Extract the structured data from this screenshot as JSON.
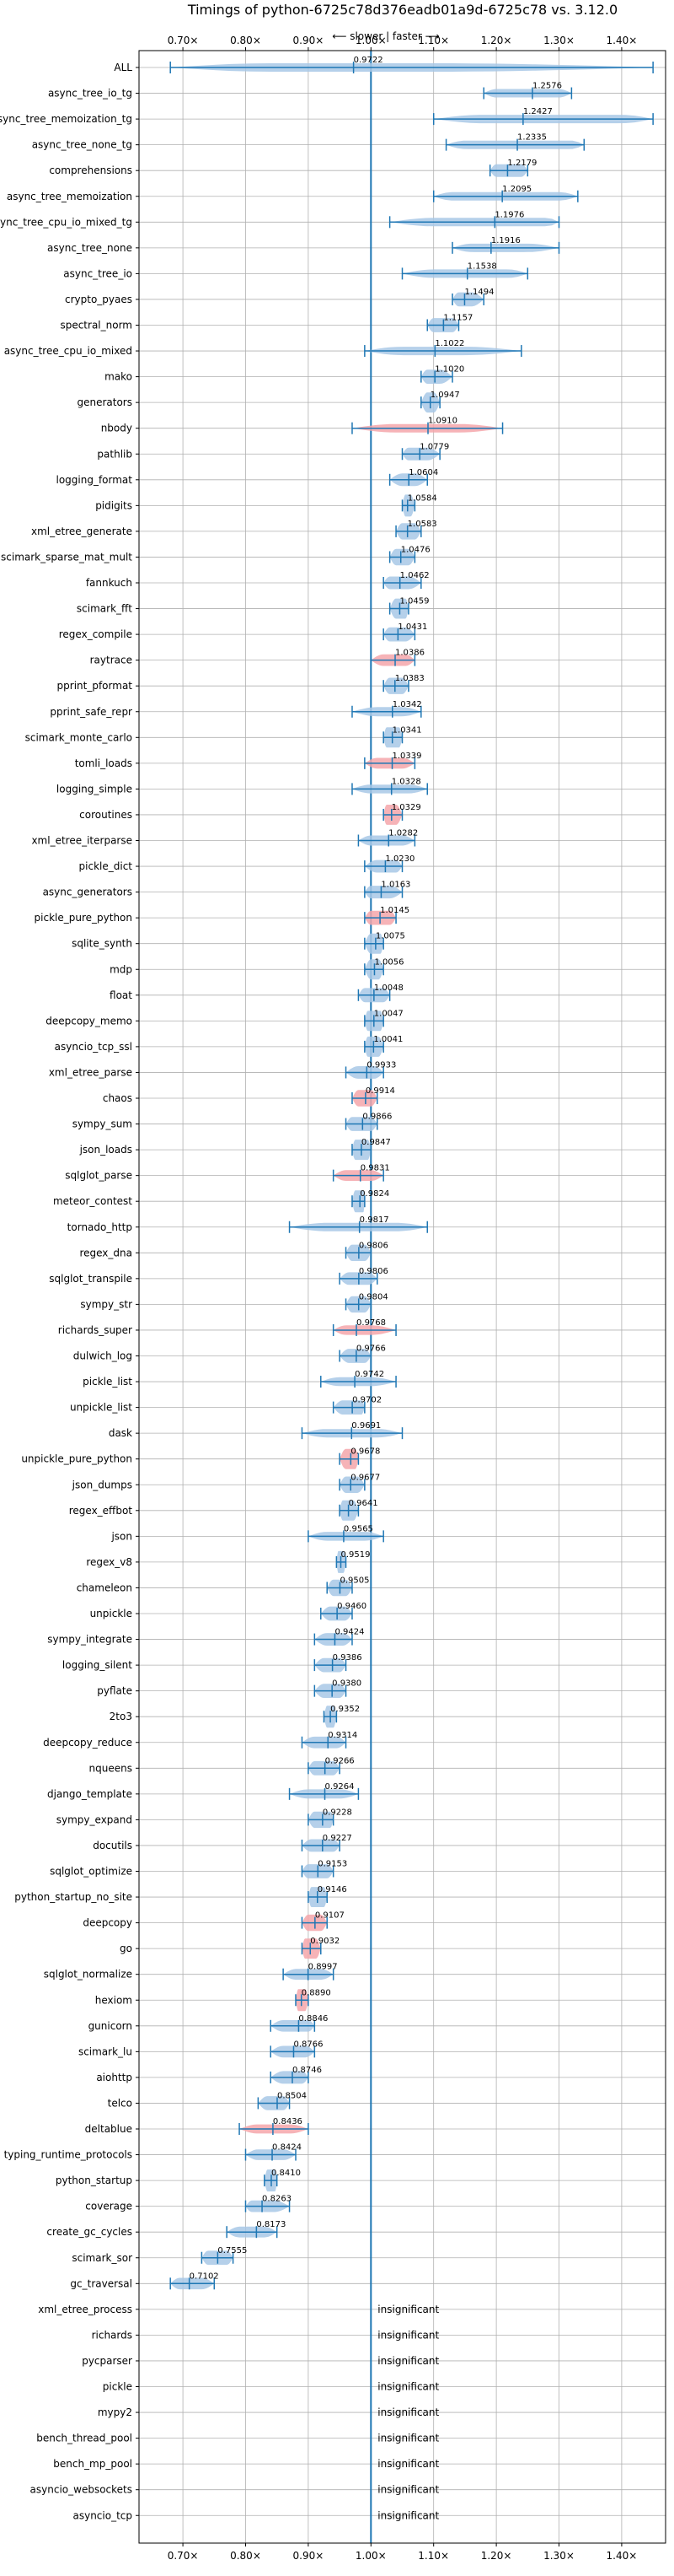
{
  "chart_data": {
    "type": "violin",
    "title": "Timings of python-6725c78d376eadb01a9d-6725c78 vs. 3.12.0",
    "subtitle": "⟵ slower | faster ⟶",
    "xlim": [
      0.63,
      1.47
    ],
    "x_ticks": [
      0.7,
      0.8,
      0.9,
      1.0,
      1.1,
      1.2,
      1.3,
      1.4
    ],
    "x_tick_labels": [
      "0.70×",
      "0.80×",
      "0.90×",
      "1.00×",
      "1.10×",
      "1.20×",
      "1.30×",
      "1.40×"
    ],
    "grid": true,
    "reference_line": 1.0,
    "colors": {
      "normal": "#a8c8e6",
      "highlight": "#f4a6aa",
      "line": "#1f77b4",
      "grid": "#b0b0b0"
    },
    "insignificant_label": "insignificant",
    "benchmarks": [
      {
        "name": "ALL",
        "mean": 0.9722,
        "min": 0.68,
        "max": 1.45,
        "q1": 0.84,
        "q3": 1.1,
        "highlight": false
      },
      {
        "name": "async_tree_io_tg",
        "mean": 1.2576,
        "min": 1.18,
        "max": 1.32,
        "q1": 1.2,
        "q3": 1.3,
        "highlight": false
      },
      {
        "name": "async_tree_memoization_tg",
        "mean": 1.2427,
        "min": 1.1,
        "max": 1.45,
        "q1": 1.18,
        "q3": 1.4,
        "highlight": false
      },
      {
        "name": "async_tree_none_tg",
        "mean": 1.2335,
        "min": 1.12,
        "max": 1.34,
        "q1": 1.15,
        "q3": 1.32,
        "highlight": false
      },
      {
        "name": "comprehensions",
        "mean": 1.2179,
        "min": 1.19,
        "max": 1.25,
        "q1": 1.2,
        "q3": 1.24,
        "highlight": false
      },
      {
        "name": "async_tree_memoization",
        "mean": 1.2095,
        "min": 1.1,
        "max": 1.33,
        "q1": 1.13,
        "q3": 1.3,
        "highlight": false
      },
      {
        "name": "async_tree_cpu_io_mixed_tg",
        "mean": 1.1976,
        "min": 1.03,
        "max": 1.3,
        "q1": 1.1,
        "q3": 1.28,
        "highlight": false
      },
      {
        "name": "async_tree_none",
        "mean": 1.1916,
        "min": 1.13,
        "max": 1.3,
        "q1": 1.16,
        "q3": 1.25,
        "highlight": false
      },
      {
        "name": "async_tree_io",
        "mean": 1.1538,
        "min": 1.05,
        "max": 1.25,
        "q1": 1.1,
        "q3": 1.22,
        "highlight": false
      },
      {
        "name": "crypto_pyaes",
        "mean": 1.1494,
        "min": 1.13,
        "max": 1.18,
        "q1": 1.14,
        "q3": 1.16,
        "highlight": false
      },
      {
        "name": "spectral_norm",
        "mean": 1.1157,
        "min": 1.09,
        "max": 1.14,
        "q1": 1.1,
        "q3": 1.13,
        "highlight": false
      },
      {
        "name": "async_tree_cpu_io_mixed",
        "mean": 1.1022,
        "min": 0.99,
        "max": 1.24,
        "q1": 1.05,
        "q3": 1.15,
        "highlight": false
      },
      {
        "name": "mako",
        "mean": 1.102,
        "min": 1.08,
        "max": 1.13,
        "q1": 1.09,
        "q3": 1.11,
        "highlight": false
      },
      {
        "name": "generators",
        "mean": 1.0947,
        "min": 1.08,
        "max": 1.11,
        "q1": 1.09,
        "q3": 1.1,
        "highlight": false
      },
      {
        "name": "nbody",
        "mean": 1.091,
        "min": 0.97,
        "max": 1.21,
        "q1": 1.04,
        "q3": 1.14,
        "highlight": true
      },
      {
        "name": "pathlib",
        "mean": 1.0779,
        "min": 1.05,
        "max": 1.11,
        "q1": 1.06,
        "q3": 1.09,
        "highlight": false
      },
      {
        "name": "logging_format",
        "mean": 1.0604,
        "min": 1.03,
        "max": 1.09,
        "q1": 1.05,
        "q3": 1.07,
        "highlight": false
      },
      {
        "name": "pidigits",
        "mean": 1.0584,
        "min": 1.05,
        "max": 1.07,
        "q1": 1.055,
        "q3": 1.063,
        "highlight": false
      },
      {
        "name": "xml_etree_generate",
        "mean": 1.0583,
        "min": 1.04,
        "max": 1.08,
        "q1": 1.05,
        "q3": 1.07,
        "highlight": false
      },
      {
        "name": "scimark_sparse_mat_mult",
        "mean": 1.0476,
        "min": 1.03,
        "max": 1.07,
        "q1": 1.04,
        "q3": 1.06,
        "highlight": false
      },
      {
        "name": "fannkuch",
        "mean": 1.0462,
        "min": 1.02,
        "max": 1.08,
        "q1": 1.03,
        "q3": 1.06,
        "highlight": false
      },
      {
        "name": "scimark_fft",
        "mean": 1.0459,
        "min": 1.03,
        "max": 1.06,
        "q1": 1.04,
        "q3": 1.055,
        "highlight": false
      },
      {
        "name": "regex_compile",
        "mean": 1.0431,
        "min": 1.02,
        "max": 1.07,
        "q1": 1.03,
        "q3": 1.055,
        "highlight": false
      },
      {
        "name": "raytrace",
        "mean": 1.0386,
        "min": 1.0,
        "max": 1.07,
        "q1": 1.02,
        "q3": 1.055,
        "highlight": true
      },
      {
        "name": "pprint_pformat",
        "mean": 1.0383,
        "min": 1.02,
        "max": 1.06,
        "q1": 1.03,
        "q3": 1.05,
        "highlight": false
      },
      {
        "name": "pprint_safe_repr",
        "mean": 1.0342,
        "min": 0.97,
        "max": 1.08,
        "q1": 1.01,
        "q3": 1.05,
        "highlight": false
      },
      {
        "name": "scimark_monte_carlo",
        "mean": 1.0341,
        "min": 1.02,
        "max": 1.05,
        "q1": 1.025,
        "q3": 1.045,
        "highlight": false
      },
      {
        "name": "tomli_loads",
        "mean": 1.0339,
        "min": 0.99,
        "max": 1.07,
        "q1": 1.01,
        "q3": 1.05,
        "highlight": true
      },
      {
        "name": "logging_simple",
        "mean": 1.0328,
        "min": 0.97,
        "max": 1.09,
        "q1": 1.0,
        "q3": 1.06,
        "highlight": false
      },
      {
        "name": "coroutines",
        "mean": 1.0329,
        "min": 1.02,
        "max": 1.05,
        "q1": 1.025,
        "q3": 1.04,
        "highlight": true
      },
      {
        "name": "xml_etree_iterparse",
        "mean": 1.0282,
        "min": 0.98,
        "max": 1.07,
        "q1": 1.0,
        "q3": 1.05,
        "highlight": false
      },
      {
        "name": "pickle_dict",
        "mean": 1.023,
        "min": 0.99,
        "max": 1.05,
        "q1": 1.01,
        "q3": 1.04,
        "highlight": false
      },
      {
        "name": "async_generators",
        "mean": 1.0163,
        "min": 0.99,
        "max": 1.05,
        "q1": 1.0,
        "q3": 1.03,
        "highlight": false
      },
      {
        "name": "pickle_pure_python",
        "mean": 1.0145,
        "min": 0.99,
        "max": 1.04,
        "q1": 1.0,
        "q3": 1.03,
        "highlight": true
      },
      {
        "name": "sqlite_synth",
        "mean": 1.0075,
        "min": 0.99,
        "max": 1.02,
        "q1": 1.0,
        "q3": 1.015,
        "highlight": false
      },
      {
        "name": "mdp",
        "mean": 1.0056,
        "min": 0.99,
        "max": 1.02,
        "q1": 1.0,
        "q3": 1.012,
        "highlight": false
      },
      {
        "name": "float",
        "mean": 1.0048,
        "min": 0.98,
        "max": 1.03,
        "q1": 0.99,
        "q3": 1.02,
        "highlight": false
      },
      {
        "name": "deepcopy_memo",
        "mean": 1.0047,
        "min": 0.99,
        "max": 1.02,
        "q1": 0.995,
        "q3": 1.015,
        "highlight": false
      },
      {
        "name": "asyncio_tcp_ssl",
        "mean": 1.0041,
        "min": 0.99,
        "max": 1.02,
        "q1": 0.995,
        "q3": 1.012,
        "highlight": false
      },
      {
        "name": "xml_etree_parse",
        "mean": 0.9933,
        "min": 0.96,
        "max": 1.02,
        "q1": 0.98,
        "q3": 1.005,
        "highlight": false
      },
      {
        "name": "chaos",
        "mean": 0.9914,
        "min": 0.97,
        "max": 1.01,
        "q1": 0.98,
        "q3": 1.0,
        "highlight": true
      },
      {
        "name": "sympy_sum",
        "mean": 0.9866,
        "min": 0.96,
        "max": 1.01,
        "q1": 0.97,
        "q3": 1.0,
        "highlight": false
      },
      {
        "name": "json_loads",
        "mean": 0.9847,
        "min": 0.97,
        "max": 1.0,
        "q1": 0.975,
        "q3": 0.995,
        "highlight": false
      },
      {
        "name": "sqlglot_parse",
        "mean": 0.9831,
        "min": 0.94,
        "max": 1.02,
        "q1": 0.96,
        "q3": 1.0,
        "highlight": true
      },
      {
        "name": "meteor_contest",
        "mean": 0.9824,
        "min": 0.97,
        "max": 0.99,
        "q1": 0.975,
        "q3": 0.988,
        "highlight": false
      },
      {
        "name": "tornado_http",
        "mean": 0.9817,
        "min": 0.87,
        "max": 1.09,
        "q1": 0.93,
        "q3": 1.04,
        "highlight": false
      },
      {
        "name": "regex_dna",
        "mean": 0.9806,
        "min": 0.96,
        "max": 1.0,
        "q1": 0.97,
        "q3": 0.99,
        "highlight": false
      },
      {
        "name": "sqlglot_transpile",
        "mean": 0.9806,
        "min": 0.95,
        "max": 1.01,
        "q1": 0.965,
        "q3": 0.995,
        "highlight": false
      },
      {
        "name": "sympy_str",
        "mean": 0.9804,
        "min": 0.96,
        "max": 1.0,
        "q1": 0.97,
        "q3": 0.99,
        "highlight": false
      },
      {
        "name": "richards_super",
        "mean": 0.9768,
        "min": 0.94,
        "max": 1.04,
        "q1": 0.96,
        "q3": 1.0,
        "highlight": true
      },
      {
        "name": "dulwich_log",
        "mean": 0.9766,
        "min": 0.95,
        "max": 1.0,
        "q1": 0.965,
        "q3": 0.99,
        "highlight": false
      },
      {
        "name": "pickle_list",
        "mean": 0.9742,
        "min": 0.92,
        "max": 1.04,
        "q1": 0.95,
        "q3": 1.0,
        "highlight": false
      },
      {
        "name": "unpickle_list",
        "mean": 0.9702,
        "min": 0.94,
        "max": 0.99,
        "q1": 0.955,
        "q3": 0.985,
        "highlight": false
      },
      {
        "name": "dask",
        "mean": 0.9691,
        "min": 0.89,
        "max": 1.05,
        "q1": 0.93,
        "q3": 1.01,
        "highlight": false
      },
      {
        "name": "unpickle_pure_python",
        "mean": 0.9678,
        "min": 0.95,
        "max": 0.98,
        "q1": 0.96,
        "q3": 0.975,
        "highlight": true
      },
      {
        "name": "json_dumps",
        "mean": 0.9677,
        "min": 0.95,
        "max": 0.99,
        "q1": 0.96,
        "q3": 0.978,
        "highlight": false
      },
      {
        "name": "regex_effbot",
        "mean": 0.9641,
        "min": 0.95,
        "max": 0.98,
        "q1": 0.955,
        "q3": 0.972,
        "highlight": false
      },
      {
        "name": "json",
        "mean": 0.9565,
        "min": 0.9,
        "max": 1.02,
        "q1": 0.93,
        "q3": 0.99,
        "highlight": false
      },
      {
        "name": "regex_v8",
        "mean": 0.9519,
        "min": 0.945,
        "max": 0.96,
        "q1": 0.948,
        "q3": 0.956,
        "highlight": false
      },
      {
        "name": "chameleon",
        "mean": 0.9505,
        "min": 0.93,
        "max": 0.97,
        "q1": 0.94,
        "q3": 0.96,
        "highlight": false
      },
      {
        "name": "unpickle",
        "mean": 0.946,
        "min": 0.92,
        "max": 0.97,
        "q1": 0.935,
        "q3": 0.958,
        "highlight": false
      },
      {
        "name": "sympy_integrate",
        "mean": 0.9424,
        "min": 0.91,
        "max": 0.97,
        "q1": 0.93,
        "q3": 0.955,
        "highlight": false
      },
      {
        "name": "logging_silent",
        "mean": 0.9386,
        "min": 0.91,
        "max": 0.96,
        "q1": 0.925,
        "q3": 0.95,
        "highlight": false
      },
      {
        "name": "pyflate",
        "mean": 0.938,
        "min": 0.91,
        "max": 0.96,
        "q1": 0.925,
        "q3": 0.95,
        "highlight": false
      },
      {
        "name": "2to3",
        "mean": 0.9352,
        "min": 0.925,
        "max": 0.945,
        "q1": 0.93,
        "q3": 0.94,
        "highlight": false
      },
      {
        "name": "deepcopy_reduce",
        "mean": 0.9314,
        "min": 0.89,
        "max": 0.96,
        "q1": 0.91,
        "q3": 0.945,
        "highlight": false
      },
      {
        "name": "nqueens",
        "mean": 0.9266,
        "min": 0.9,
        "max": 0.95,
        "q1": 0.91,
        "q3": 0.94,
        "highlight": false
      },
      {
        "name": "django_template",
        "mean": 0.9264,
        "min": 0.87,
        "max": 0.98,
        "q1": 0.9,
        "q3": 0.95,
        "highlight": false
      },
      {
        "name": "sympy_expand",
        "mean": 0.9228,
        "min": 0.9,
        "max": 0.94,
        "q1": 0.91,
        "q3": 0.935,
        "highlight": false
      },
      {
        "name": "docutils",
        "mean": 0.9227,
        "min": 0.89,
        "max": 0.95,
        "q1": 0.905,
        "q3": 0.94,
        "highlight": false
      },
      {
        "name": "sqlglot_optimize",
        "mean": 0.9153,
        "min": 0.89,
        "max": 0.94,
        "q1": 0.9,
        "q3": 0.93,
        "highlight": false
      },
      {
        "name": "python_startup_no_site",
        "mean": 0.9146,
        "min": 0.9,
        "max": 0.93,
        "q1": 0.905,
        "q3": 0.925,
        "highlight": false
      },
      {
        "name": "deepcopy",
        "mean": 0.9107,
        "min": 0.89,
        "max": 0.93,
        "q1": 0.9,
        "q3": 0.92,
        "highlight": true
      },
      {
        "name": "go",
        "mean": 0.9032,
        "min": 0.89,
        "max": 0.92,
        "q1": 0.895,
        "q3": 0.912,
        "highlight": true
      },
      {
        "name": "sqlglot_normalize",
        "mean": 0.8997,
        "min": 0.86,
        "max": 0.94,
        "q1": 0.88,
        "q3": 0.92,
        "highlight": false
      },
      {
        "name": "hexiom",
        "mean": 0.889,
        "min": 0.88,
        "max": 0.9,
        "q1": 0.884,
        "q3": 0.895,
        "highlight": true
      },
      {
        "name": "gunicorn",
        "mean": 0.8846,
        "min": 0.84,
        "max": 0.91,
        "q1": 0.86,
        "q3": 0.9,
        "highlight": false
      },
      {
        "name": "scimark_lu",
        "mean": 0.8766,
        "min": 0.84,
        "max": 0.91,
        "q1": 0.86,
        "q3": 0.895,
        "highlight": false
      },
      {
        "name": "aiohttp",
        "mean": 0.8746,
        "min": 0.84,
        "max": 0.9,
        "q1": 0.86,
        "q3": 0.89,
        "highlight": false
      },
      {
        "name": "telco",
        "mean": 0.8504,
        "min": 0.82,
        "max": 0.87,
        "q1": 0.835,
        "q3": 0.86,
        "highlight": false
      },
      {
        "name": "deltablue",
        "mean": 0.8436,
        "min": 0.79,
        "max": 0.9,
        "q1": 0.82,
        "q3": 0.87,
        "highlight": true
      },
      {
        "name": "typing_runtime_protocols",
        "mean": 0.8424,
        "min": 0.8,
        "max": 0.88,
        "q1": 0.82,
        "q3": 0.86,
        "highlight": false
      },
      {
        "name": "python_startup",
        "mean": 0.841,
        "min": 0.83,
        "max": 0.85,
        "q1": 0.835,
        "q3": 0.847,
        "highlight": false
      },
      {
        "name": "coverage",
        "mean": 0.8263,
        "min": 0.8,
        "max": 0.87,
        "q1": 0.81,
        "q3": 0.845,
        "highlight": false
      },
      {
        "name": "create_gc_cycles",
        "mean": 0.8173,
        "min": 0.77,
        "max": 0.85,
        "q1": 0.79,
        "q3": 0.83,
        "highlight": false
      },
      {
        "name": "scimark_sor",
        "mean": 0.7555,
        "min": 0.73,
        "max": 0.78,
        "q1": 0.74,
        "q3": 0.77,
        "highlight": false
      },
      {
        "name": "gc_traversal",
        "mean": 0.7102,
        "min": 0.68,
        "max": 0.75,
        "q1": 0.695,
        "q3": 0.73,
        "highlight": false
      },
      {
        "name": "xml_etree_process",
        "mean": null,
        "insignificant": true
      },
      {
        "name": "richards",
        "mean": null,
        "insignificant": true
      },
      {
        "name": "pycparser",
        "mean": null,
        "insignificant": true
      },
      {
        "name": "pickle",
        "mean": null,
        "insignificant": true
      },
      {
        "name": "mypy2",
        "mean": null,
        "insignificant": true
      },
      {
        "name": "bench_thread_pool",
        "mean": null,
        "insignificant": true
      },
      {
        "name": "bench_mp_pool",
        "mean": null,
        "insignificant": true
      },
      {
        "name": "asyncio_websockets",
        "mean": null,
        "insignificant": true
      },
      {
        "name": "asyncio_tcp",
        "mean": null,
        "insignificant": true
      }
    ]
  }
}
